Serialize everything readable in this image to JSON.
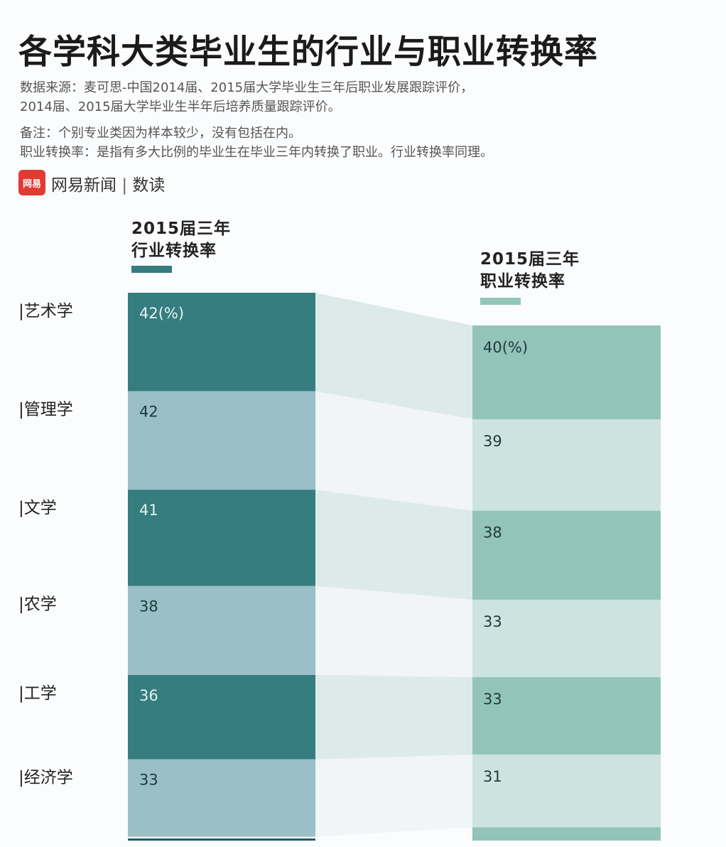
{
  "title": "各学科大类毕业生的行业与职业转换率",
  "source_lines": [
    "数据来源：麦可思-中国2014届、2015届大学毕业生三年后职业发展跟踪评价，",
    "2014届、2015届大学毕业生半年后培养质量跟踪评价。"
  ],
  "note_lines": [
    "备注：个别专业类因为样本较少，没有包括在内。",
    "职业转换率：是指有多大比例的毕业生在毕业三年内转换了职业。行业转换率同理。"
  ],
  "brand": {
    "logo": "网易",
    "name": "网易新闻",
    "sep": "|",
    "sub": "数读"
  },
  "chart_data": {
    "type": "bar",
    "title": "各学科大类毕业生的行业与职业转换率",
    "unit": "%",
    "categories": [
      "艺术学",
      "管理学",
      "文学",
      "农学",
      "工学",
      "经济学"
    ],
    "series": [
      {
        "name": "2015届三年行业转换率",
        "name_lines": [
          "2015届三年",
          "行业转换率"
        ],
        "values": [
          42,
          42,
          41,
          38,
          36,
          33
        ],
        "labels": [
          "42(%)",
          "42",
          "41",
          "38",
          "36",
          "33"
        ]
      },
      {
        "name": "2015届三年职业转换率",
        "name_lines": [
          "2015届三年",
          "职业转换率"
        ],
        "values": [
          40,
          39,
          38,
          33,
          33,
          31
        ],
        "labels": [
          "40(%)",
          "39",
          "38",
          "33",
          "33",
          "31"
        ]
      }
    ],
    "colors": {
      "s1_dark": "#357d7f",
      "s1_light": "#9bbfc7",
      "s2_dark": "#92c4ba",
      "s2_light": "#cde3e0",
      "link_dark": "#dcebe9",
      "link_light": "#f1f5f8"
    }
  }
}
